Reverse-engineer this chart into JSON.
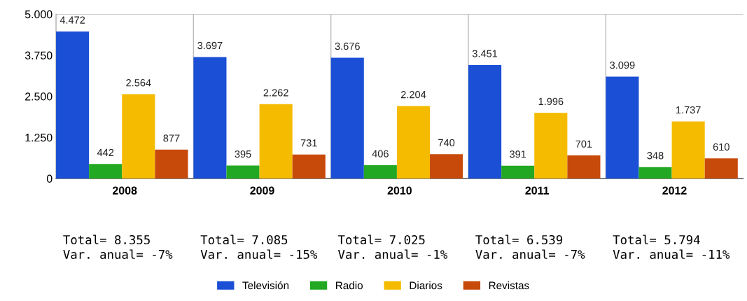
{
  "chart_data": {
    "type": "bar",
    "categories": [
      "2008",
      "2009",
      "2010",
      "2011",
      "2012"
    ],
    "series": [
      {
        "name": "Televisión",
        "color": "#1a4fd6",
        "values": [
          4472,
          3697,
          3676,
          3451,
          3099
        ],
        "value_labels": [
          "4.472",
          "3.697",
          "3.676",
          "3.451",
          "3.099"
        ]
      },
      {
        "name": "Radio",
        "color": "#22a822",
        "values": [
          442,
          395,
          406,
          391,
          348
        ],
        "value_labels": [
          "442",
          "395",
          "406",
          "391",
          "348"
        ]
      },
      {
        "name": "Diarios",
        "color": "#f5bb00",
        "values": [
          2564,
          2262,
          2204,
          1996,
          1737
        ],
        "value_labels": [
          "2.564",
          "2.262",
          "2.204",
          "1.996",
          "1.737"
        ]
      },
      {
        "name": "Revistas",
        "color": "#c84a0a",
        "values": [
          877,
          731,
          740,
          701,
          610
        ],
        "value_labels": [
          "877",
          "731",
          "740",
          "701",
          "610"
        ]
      }
    ],
    "ylim": [
      0,
      5000
    ],
    "yticks": [
      {
        "value": 0,
        "label": "0"
      },
      {
        "value": 1250,
        "label": "1.250"
      },
      {
        "value": 2500,
        "label": "2.500"
      },
      {
        "value": 3750,
        "label": "3.750"
      },
      {
        "value": 5000,
        "label": "5.000"
      }
    ],
    "grid": "x",
    "legend": "bottom",
    "annotations": [
      "Total= 8.355\nVar. anual= -7%",
      "Total= 7.085\nVar. anual= -15%",
      "Total= 7.025\nVar. anual= -1%",
      "Total= 6.539\nVar. anual= -7%",
      "Total= 5.794\nVar. anual= -11%"
    ]
  }
}
